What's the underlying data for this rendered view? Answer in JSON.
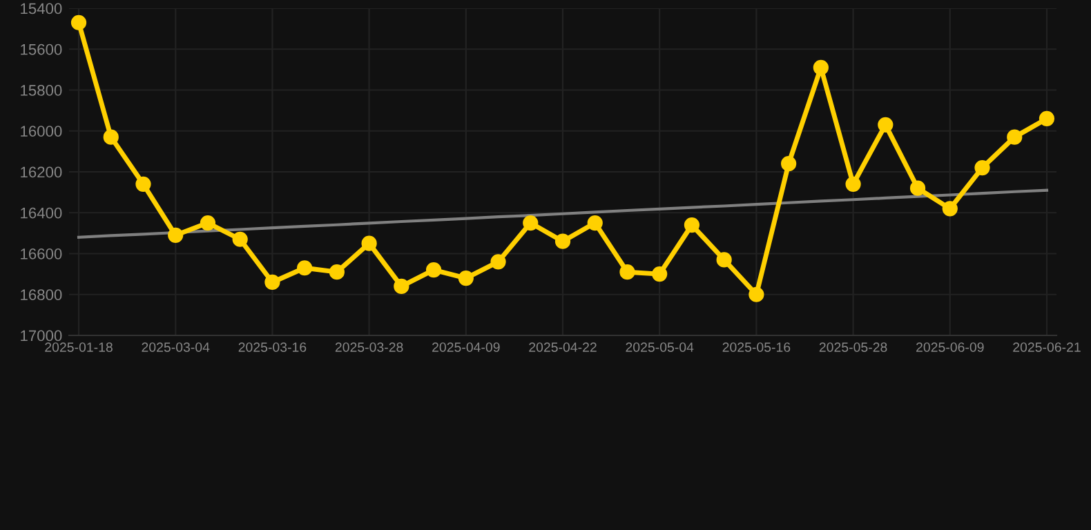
{
  "chart_data": {
    "type": "line",
    "categories": [
      "2025-01-18",
      null,
      null,
      "2025-03-04",
      null,
      null,
      "2025-03-16",
      null,
      null,
      "2025-03-28",
      null,
      null,
      "2025-04-09",
      null,
      null,
      "2025-04-22",
      null,
      null,
      "2025-05-04",
      null,
      null,
      "2025-05-16",
      null,
      null,
      "2025-05-28",
      null,
      null,
      "2025-06-09",
      null,
      null,
      "2025-06-21"
    ],
    "series": [
      {
        "color": "#ffd000",
        "marker": "circle",
        "values": [
          15470,
          16030,
          16260,
          16510,
          16450,
          16530,
          16740,
          16670,
          16690,
          16550,
          16760,
          16680,
          16720,
          16640,
          16450,
          16540,
          16450,
          16690,
          16700,
          16460,
          16630,
          16800,
          16160,
          15690,
          16260,
          15970,
          16280,
          16380,
          16180,
          16030,
          15940
        ]
      },
      {
        "color": "#808080",
        "marker": "none",
        "values": [
          16520,
          16512,
          16505,
          16497,
          16489,
          16482,
          16474,
          16466,
          16459,
          16451,
          16443,
          16436,
          16428,
          16420,
          16413,
          16405,
          16397,
          16389,
          16382,
          16374,
          16367,
          16359,
          16351,
          16343,
          16336,
          16328,
          16320,
          16313,
          16305,
          16297,
          16290
        ]
      }
    ],
    "ylim": [
      17000,
      15400
    ],
    "yticks": [
      15400,
      15600,
      15800,
      16000,
      16200,
      16400,
      16600,
      16800,
      17000
    ],
    "grid": true
  }
}
